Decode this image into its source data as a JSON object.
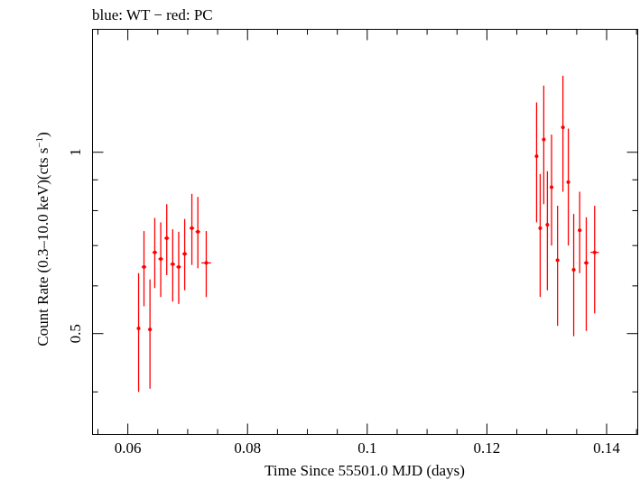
{
  "chart_data": {
    "type": "scatter",
    "title": "blue: WT − red: PC",
    "xlabel": "Time Since 55501.0 MJD (days)",
    "ylabel_main": "Count Rate (0.3–10.0 keV)(cts s",
    "ylabel_sup": "−1",
    "ylabel_close": ")",
    "xlim": [
      0.0541,
      0.1452
    ],
    "ylim_log": [
      0.34,
      1.6
    ],
    "yscale": "log",
    "x_ticks": [
      0.06,
      0.08,
      0.1,
      0.12,
      0.14
    ],
    "x_tick_labels": [
      "0.06",
      "0.08",
      "0.1",
      "0.12",
      "0.14"
    ],
    "y_ticks": [
      0.5,
      1
    ],
    "y_tick_labels": [
      "0.5",
      "1"
    ],
    "series": [
      {
        "name": "PC",
        "color": "#ff0000",
        "points": [
          {
            "x": 0.0618,
            "xerr": 0.0003,
            "y": 0.51,
            "ylo": 0.4,
            "yhi": 0.63
          },
          {
            "x": 0.0627,
            "xerr": 0.0004,
            "y": 0.645,
            "ylo": 0.555,
            "yhi": 0.74
          },
          {
            "x": 0.0637,
            "xerr": 0.0003,
            "y": 0.508,
            "ylo": 0.405,
            "yhi": 0.615
          },
          {
            "x": 0.0645,
            "xerr": 0.0004,
            "y": 0.682,
            "ylo": 0.595,
            "yhi": 0.778
          },
          {
            "x": 0.0655,
            "xerr": 0.0004,
            "y": 0.665,
            "ylo": 0.575,
            "yhi": 0.765
          },
          {
            "x": 0.0665,
            "xerr": 0.0004,
            "y": 0.72,
            "ylo": 0.625,
            "yhi": 0.82
          },
          {
            "x": 0.0675,
            "xerr": 0.0004,
            "y": 0.652,
            "ylo": 0.565,
            "yhi": 0.745
          },
          {
            "x": 0.0685,
            "xerr": 0.0004,
            "y": 0.645,
            "ylo": 0.56,
            "yhi": 0.738
          },
          {
            "x": 0.0695,
            "xerr": 0.0004,
            "y": 0.678,
            "ylo": 0.59,
            "yhi": 0.775
          },
          {
            "x": 0.0707,
            "xerr": 0.0004,
            "y": 0.748,
            "ylo": 0.65,
            "yhi": 0.853
          },
          {
            "x": 0.0717,
            "xerr": 0.0004,
            "y": 0.738,
            "ylo": 0.642,
            "yhi": 0.843
          },
          {
            "x": 0.0731,
            "xerr": 0.0008,
            "y": 0.655,
            "ylo": 0.575,
            "yhi": 0.74
          },
          {
            "x": 0.1283,
            "xerr": 0.0002,
            "y": 0.985,
            "ylo": 0.765,
            "yhi": 1.21
          },
          {
            "x": 0.1289,
            "xerr": 0.0002,
            "y": 0.748,
            "ylo": 0.575,
            "yhi": 0.92
          },
          {
            "x": 0.1295,
            "xerr": 0.0002,
            "y": 1.05,
            "ylo": 0.82,
            "yhi": 1.29
          },
          {
            "x": 0.1301,
            "xerr": 0.0002,
            "y": 0.758,
            "ylo": 0.59,
            "yhi": 0.93
          },
          {
            "x": 0.1308,
            "xerr": 0.0002,
            "y": 0.875,
            "ylo": 0.7,
            "yhi": 1.07
          },
          {
            "x": 0.1318,
            "xerr": 0.0003,
            "y": 0.662,
            "ylo": 0.515,
            "yhi": 0.815
          },
          {
            "x": 0.1327,
            "xerr": 0.0003,
            "y": 1.1,
            "ylo": 0.86,
            "yhi": 1.34
          },
          {
            "x": 0.1336,
            "xerr": 0.0003,
            "y": 0.892,
            "ylo": 0.7,
            "yhi": 1.095
          },
          {
            "x": 0.1345,
            "xerr": 0.0003,
            "y": 0.638,
            "ylo": 0.495,
            "yhi": 0.79
          },
          {
            "x": 0.1355,
            "xerr": 0.0003,
            "y": 0.742,
            "ylo": 0.63,
            "yhi": 0.86
          },
          {
            "x": 0.1366,
            "xerr": 0.0004,
            "y": 0.655,
            "ylo": 0.505,
            "yhi": 0.78
          },
          {
            "x": 0.138,
            "xerr": 0.0007,
            "y": 0.682,
            "ylo": 0.54,
            "yhi": 0.815
          }
        ]
      }
    ]
  }
}
